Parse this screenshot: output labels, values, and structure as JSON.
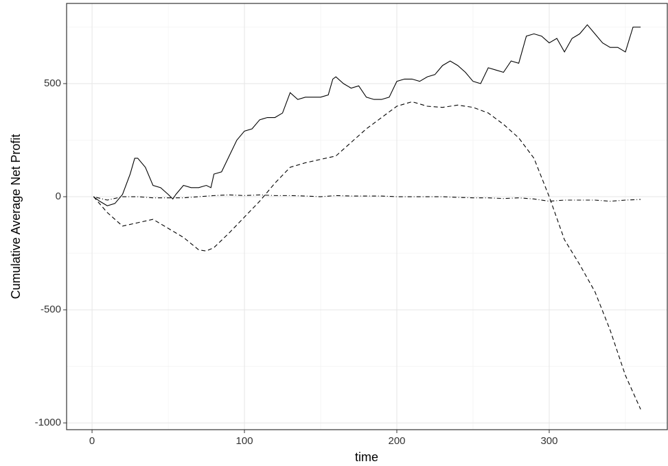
{
  "chart_data": {
    "type": "line",
    "x_label": "time",
    "y_label": "Cumulative Average Net Profit",
    "xlim": [
      -16.7,
      377.5
    ],
    "ylim": [
      -1030,
      854.5
    ],
    "xticks": [
      0,
      100,
      200,
      300
    ],
    "yticks": [
      -1000,
      -500,
      0,
      500
    ],
    "xminor": [
      50,
      150,
      250,
      350
    ],
    "yminor": [
      -750,
      -250,
      250,
      750
    ],
    "grid": true,
    "series": [
      {
        "color": "#000000",
        "dash": "solid",
        "x": [
          1,
          5,
          10,
          15,
          20,
          25,
          28,
          30,
          35,
          40,
          45,
          50,
          53,
          55,
          60,
          65,
          70,
          75,
          78,
          80,
          85,
          90,
          95,
          100,
          105,
          110,
          115,
          120,
          125,
          130,
          135,
          140,
          145,
          150,
          155,
          158,
          160,
          165,
          170,
          175,
          180,
          185,
          190,
          195,
          200,
          205,
          210,
          215,
          220,
          225,
          230,
          235,
          240,
          245,
          250,
          255,
          260,
          265,
          270,
          275,
          280,
          285,
          290,
          295,
          300,
          305,
          310,
          315,
          320,
          325,
          330,
          335,
          340,
          345,
          350,
          355,
          360
        ],
        "values": [
          0,
          -20,
          -40,
          -30,
          10,
          100,
          170,
          170,
          130,
          50,
          40,
          10,
          -10,
          10,
          50,
          40,
          40,
          50,
          40,
          100,
          110,
          180,
          250,
          290,
          300,
          340,
          350,
          350,
          370,
          460,
          430,
          440,
          440,
          440,
          450,
          520,
          530,
          500,
          480,
          490,
          440,
          430,
          430,
          440,
          510,
          520,
          520,
          510,
          530,
          540,
          580,
          600,
          580,
          550,
          510,
          500,
          570,
          560,
          550,
          600,
          590,
          710,
          720,
          710,
          680,
          700,
          640,
          700,
          720,
          760,
          720,
          680,
          660,
          660,
          640,
          750,
          750
        ]
      },
      {
        "color": "#000000",
        "dash": "dashed",
        "x": [
          1,
          10,
          20,
          30,
          40,
          50,
          60,
          70,
          75,
          80,
          90,
          100,
          110,
          120,
          130,
          140,
          150,
          160,
          170,
          180,
          190,
          200,
          210,
          220,
          230,
          240,
          250,
          260,
          270,
          280,
          290,
          300,
          310,
          320,
          330,
          340,
          350,
          360
        ],
        "values": [
          0,
          -70,
          -130,
          -115,
          -100,
          -140,
          -180,
          -235,
          -240,
          -225,
          -160,
          -90,
          -20,
          60,
          130,
          150,
          165,
          180,
          240,
          300,
          350,
          400,
          420,
          400,
          395,
          405,
          395,
          370,
          320,
          260,
          170,
          0,
          -190,
          -300,
          -420,
          -590,
          -790,
          -940
        ]
      },
      {
        "color": "#000000",
        "dash": "dotdash",
        "x": [
          1,
          10,
          20,
          30,
          40,
          50,
          60,
          70,
          80,
          90,
          100,
          110,
          120,
          130,
          140,
          150,
          160,
          170,
          180,
          190,
          200,
          210,
          220,
          230,
          240,
          250,
          260,
          270,
          280,
          290,
          300,
          310,
          320,
          330,
          340,
          350,
          360
        ],
        "values": [
          0,
          -15,
          0,
          0,
          -5,
          -5,
          -5,
          0,
          5,
          8,
          5,
          8,
          5,
          5,
          3,
          0,
          5,
          3,
          3,
          3,
          0,
          0,
          0,
          0,
          -3,
          -5,
          -5,
          -8,
          -5,
          -10,
          -20,
          -15,
          -15,
          -15,
          -20,
          -15,
          -12
        ]
      }
    ]
  }
}
